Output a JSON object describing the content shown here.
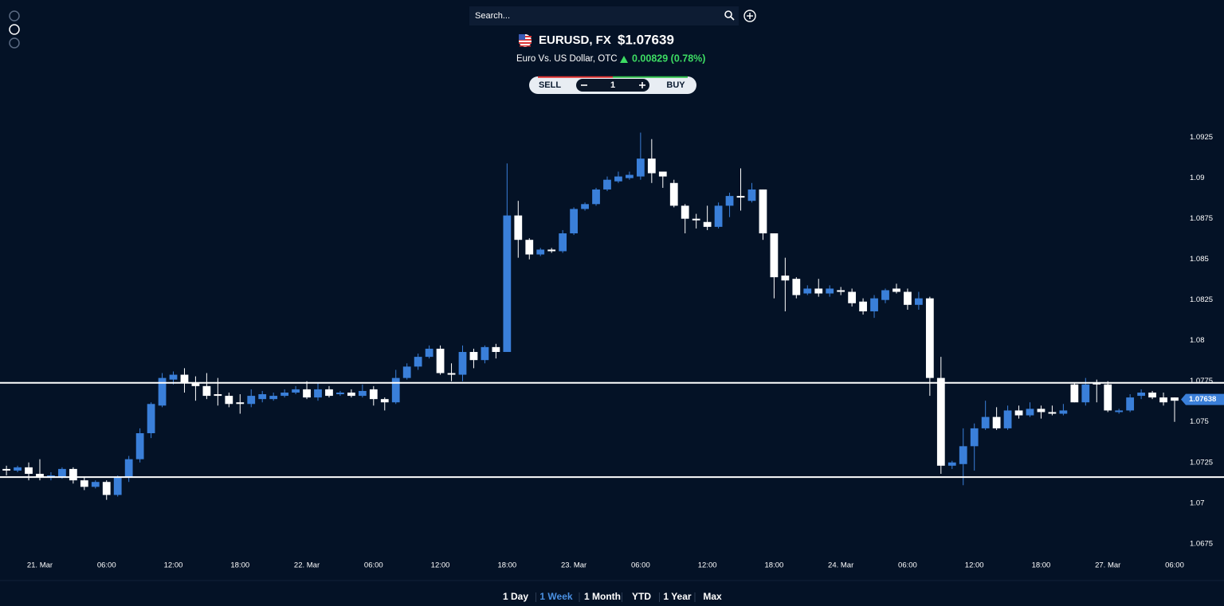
{
  "header": {
    "search_placeholder": "Search...",
    "symbol": "EURUSD, FX",
    "price": "$1.07639",
    "description": "Euro Vs. US Dollar, OTC",
    "change": "0.00829 (0.78%)"
  },
  "trade": {
    "sell": "SELL",
    "quantity": "1",
    "buy": "BUY"
  },
  "ranges": {
    "options": [
      "1 Day",
      "1 Week",
      "1 Month",
      "YTD",
      "1 Year",
      "Max"
    ],
    "active": 1
  },
  "chart_data": {
    "type": "candlestick",
    "x": [
      -3,
      -2,
      -1,
      0,
      1,
      2,
      3,
      4,
      5,
      6,
      7,
      8,
      9,
      10,
      11,
      12,
      13,
      14,
      15,
      16,
      17,
      18,
      19,
      20,
      21,
      22,
      23,
      24,
      25,
      26,
      27,
      28,
      29,
      30,
      31,
      32,
      33,
      34,
      35,
      36,
      37,
      38,
      39,
      40,
      41,
      42,
      43,
      44,
      45,
      46,
      47,
      48,
      49,
      50,
      51,
      52,
      53,
      54,
      55,
      56,
      57,
      58,
      59,
      60,
      61,
      62,
      63,
      64,
      65,
      66,
      67,
      68,
      69,
      70,
      71,
      72,
      73,
      74,
      75,
      76,
      77,
      78,
      79,
      80,
      81,
      82,
      83,
      84,
      85,
      86,
      87,
      88,
      89,
      90,
      91,
      92,
      93,
      94,
      95,
      96,
      97,
      98,
      99,
      100,
      101,
      102
    ],
    "open": [
      1.0721,
      1.072,
      1.0722,
      1.0718,
      1.0716,
      1.0716,
      1.0721,
      1.0714,
      1.071,
      1.0713,
      1.0705,
      1.0716,
      1.0727,
      1.0743,
      1.076,
      1.0776,
      1.0779,
      1.0774,
      1.0772,
      1.0767,
      1.0766,
      1.0762,
      1.0761,
      1.0764,
      1.0764,
      1.0766,
      1.0768,
      1.077,
      1.0765,
      1.077,
      1.0767,
      1.0768,
      1.0766,
      1.077,
      1.0764,
      1.0762,
      1.0777,
      1.0784,
      1.079,
      1.0795,
      1.078,
      1.0779,
      1.0793,
      1.0788,
      1.0796,
      1.0793,
      1.0877,
      1.0862,
      1.0853,
      1.0856,
      1.0855,
      1.0866,
      1.0881,
      1.0884,
      1.0893,
      1.0898,
      1.09,
      1.0901,
      1.0912,
      1.0904,
      1.0897,
      1.0883,
      1.0875,
      1.0873,
      1.087,
      1.0883,
      1.0889,
      1.0886,
      1.0893,
      1.0866,
      1.084,
      1.0838,
      1.0829,
      1.0832,
      1.0829,
      1.0831,
      1.083,
      1.0824,
      1.0818,
      1.0825,
      1.0832,
      1.083,
      1.0822,
      1.0826,
      1.0777,
      1.0723,
      1.0724,
      1.0735,
      1.0746,
      1.0753,
      1.0746,
      1.0757,
      1.0754,
      1.0758,
      1.0756,
      1.0755,
      1.0773,
      1.0762,
      1.0774,
      1.0773,
      1.0756,
      1.0757,
      1.0766,
      1.0768,
      1.0765,
      1.0765
    ],
    "high": [
      1.0723,
      1.0723,
      1.0725,
      1.0727,
      1.0719,
      1.0722,
      1.0722,
      1.0716,
      1.0714,
      1.0714,
      1.0717,
      1.0729,
      1.0746,
      1.0762,
      1.078,
      1.0781,
      1.0783,
      1.0778,
      1.078,
      1.0777,
      1.0768,
      1.0767,
      1.077,
      1.0769,
      1.0768,
      1.077,
      1.0772,
      1.0775,
      1.0774,
      1.0772,
      1.0769,
      1.077,
      1.0773,
      1.0772,
      1.0765,
      1.0782,
      1.0786,
      1.0792,
      1.0797,
      1.0797,
      1.0786,
      1.0797,
      1.0795,
      1.0797,
      1.0798,
      1.0909,
      1.0886,
      1.0863,
      1.0857,
      1.0857,
      1.0868,
      1.0882,
      1.0885,
      1.0894,
      1.0901,
      1.0904,
      1.0904,
      1.0928,
      1.0924,
      1.0904,
      1.0899,
      1.0884,
      1.0878,
      1.0883,
      1.0885,
      1.0891,
      1.0906,
      1.0897,
      1.0893,
      1.0866,
      1.0851,
      1.0839,
      1.0834,
      1.0838,
      1.0834,
      1.0833,
      1.0832,
      1.0826,
      1.0828,
      1.0832,
      1.0835,
      1.0832,
      1.083,
      1.0827,
      1.079,
      1.0726,
      1.0746,
      1.0749,
      1.0763,
      1.0759,
      1.076,
      1.076,
      1.0762,
      1.076,
      1.076,
      1.0761,
      1.0774,
      1.0777,
      1.0776,
      1.0775,
      1.0758,
      1.0767,
      1.077,
      1.0769,
      1.0768,
      1.0765
    ],
    "low": [
      1.0717,
      1.0719,
      1.0714,
      1.0714,
      1.0714,
      1.0715,
      1.0712,
      1.0708,
      1.0709,
      1.0702,
      1.0704,
      1.0713,
      1.0725,
      1.074,
      1.0759,
      1.0773,
      1.0768,
      1.0763,
      1.0764,
      1.076,
      1.0759,
      1.0755,
      1.0759,
      1.0762,
      1.0763,
      1.0765,
      1.0767,
      1.0764,
      1.0763,
      1.0765,
      1.0766,
      1.0765,
      1.0765,
      1.076,
      1.0757,
      1.0761,
      1.0776,
      1.0782,
      1.0789,
      1.0779,
      1.0775,
      1.0775,
      1.0783,
      1.0786,
      1.0789,
      1.0793,
      1.0851,
      1.085,
      1.0852,
      1.0854,
      1.0854,
      1.0865,
      1.088,
      1.0883,
      1.0892,
      1.0897,
      1.0899,
      1.0899,
      1.0897,
      1.0894,
      1.0882,
      1.0866,
      1.0869,
      1.0868,
      1.0869,
      1.0876,
      1.088,
      1.0885,
      1.0862,
      1.0826,
      1.0818,
      1.0826,
      1.0828,
      1.0827,
      1.0827,
      1.0828,
      1.0821,
      1.0816,
      1.0814,
      1.0823,
      1.0829,
      1.0819,
      1.0819,
      1.0766,
      1.0718,
      1.0721,
      1.0711,
      1.072,
      1.0745,
      1.0745,
      1.0745,
      1.0752,
      1.0753,
      1.0752,
      1.0754,
      1.0754,
      1.0762,
      1.076,
      1.0762,
      1.0756,
      1.0755,
      1.0756,
      1.0764,
      1.0764,
      1.076,
      1.075
    ],
    "close": [
      1.072,
      1.0722,
      1.0718,
      1.0716,
      1.0717,
      1.0721,
      1.0714,
      1.071,
      1.0713,
      1.0705,
      1.0716,
      1.0727,
      1.0743,
      1.0761,
      1.0777,
      1.0779,
      1.0774,
      1.0772,
      1.0766,
      1.0766,
      1.0761,
      1.0761,
      1.0766,
      1.0767,
      1.0766,
      1.0768,
      1.077,
      1.0765,
      1.077,
      1.0766,
      1.0768,
      1.0766,
      1.0769,
      1.0764,
      1.0762,
      1.0777,
      1.0784,
      1.079,
      1.0795,
      1.078,
      1.0779,
      1.0793,
      1.0788,
      1.0796,
      1.0793,
      1.0877,
      1.0862,
      1.0853,
      1.0856,
      1.0855,
      1.0866,
      1.0881,
      1.0884,
      1.0893,
      1.0899,
      1.0901,
      1.0902,
      1.0912,
      1.0903,
      1.0901,
      1.0883,
      1.0875,
      1.0874,
      1.087,
      1.0883,
      1.0889,
      1.0888,
      1.0893,
      1.0866,
      1.0839,
      1.0837,
      1.0828,
      1.0832,
      1.0829,
      1.0832,
      1.083,
      1.0823,
      1.0818,
      1.0826,
      1.0831,
      1.083,
      1.0822,
      1.0826,
      1.0777,
      1.0723,
      1.0725,
      1.0735,
      1.0746,
      1.0753,
      1.0746,
      1.0757,
      1.0754,
      1.0758,
      1.0756,
      1.0755,
      1.0757,
      1.0762,
      1.0773,
      1.0773,
      1.0757,
      1.0757,
      1.0765,
      1.0768,
      1.0765,
      1.0762,
      1.0763
    ],
    "up_color": "#3a7fd9",
    "down_color": "#ffffff",
    "xlim": [
      -3.58,
      102.86
    ],
    "xticks": [
      {
        "value": 0,
        "label": "21. Mar"
      },
      {
        "value": 6,
        "label": "06:00"
      },
      {
        "value": 12,
        "label": "12:00"
      },
      {
        "value": 18,
        "label": "18:00"
      },
      {
        "value": 24,
        "label": "22. Mar"
      },
      {
        "value": 30,
        "label": "06:00"
      },
      {
        "value": 36,
        "label": "12:00"
      },
      {
        "value": 42,
        "label": "18:00"
      },
      {
        "value": 48,
        "label": "23. Mar"
      },
      {
        "value": 54,
        "label": "06:00"
      },
      {
        "value": 60,
        "label": "12:00"
      },
      {
        "value": 66,
        "label": "18:00"
      },
      {
        "value": 72,
        "label": "24. Mar"
      },
      {
        "value": 78,
        "label": "06:00"
      },
      {
        "value": 84,
        "label": "12:00"
      },
      {
        "value": 90,
        "label": "18:00"
      },
      {
        "value": 96,
        "label": "27. Mar"
      },
      {
        "value": 102,
        "label": "06:00"
      }
    ],
    "ylim": [
      1.0669,
      1.0941
    ],
    "yticks": [
      1.0675,
      1.07,
      1.0725,
      1.075,
      1.0775,
      1.08,
      1.0825,
      1.085,
      1.0875,
      1.09,
      1.0925
    ],
    "levels": [
      1.0774,
      1.0716
    ],
    "level_color": "#ffffff",
    "current_price": {
      "value": 1.07638,
      "label": "1.07638"
    }
  }
}
